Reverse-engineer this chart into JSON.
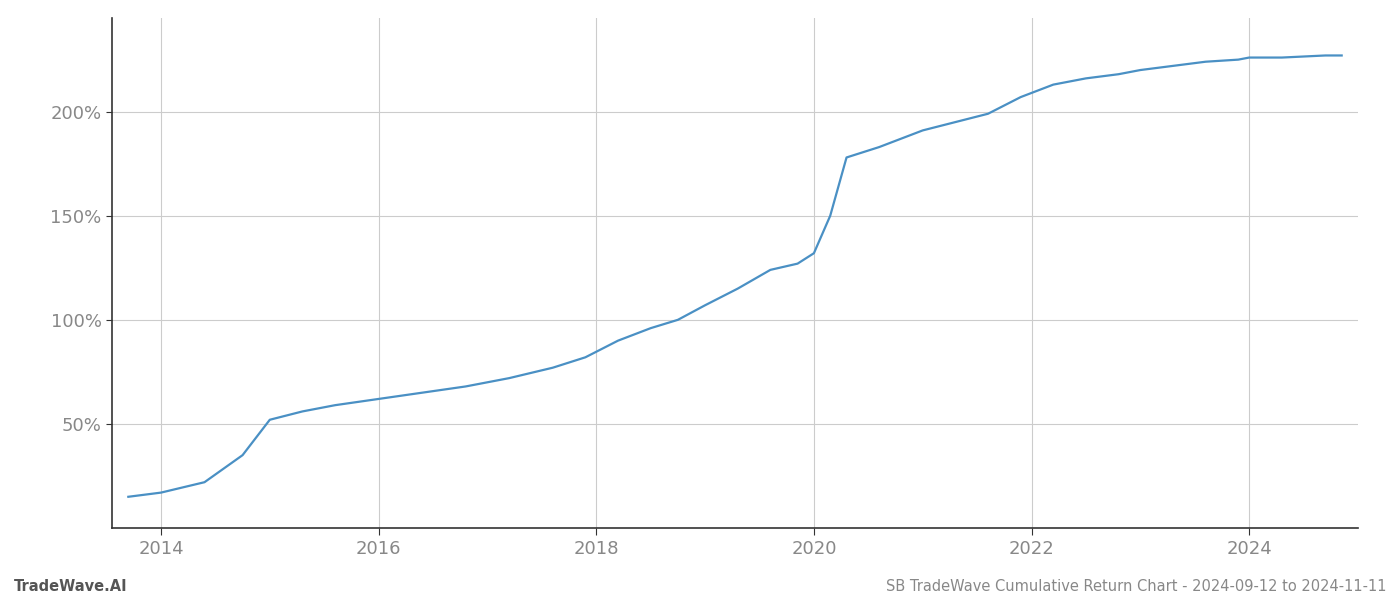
{
  "title": "SB TradeWave Cumulative Return Chart - 2024-09-12 to 2024-11-11",
  "watermark": "TradeWave.AI",
  "line_color": "#4a90c4",
  "background_color": "#ffffff",
  "grid_color": "#cccccc",
  "x_years": [
    2013.7,
    2014.0,
    2014.4,
    2014.75,
    2015.0,
    2015.3,
    2015.6,
    2016.0,
    2016.4,
    2016.8,
    2017.2,
    2017.6,
    2017.9,
    2018.2,
    2018.5,
    2018.75,
    2019.0,
    2019.3,
    2019.6,
    2019.85,
    2020.0,
    2020.15,
    2020.3,
    2020.6,
    2021.0,
    2021.3,
    2021.6,
    2021.9,
    2022.2,
    2022.5,
    2022.8,
    2023.0,
    2023.3,
    2023.6,
    2023.9,
    2024.0,
    2024.3,
    2024.7,
    2024.85
  ],
  "y_values": [
    15,
    17,
    22,
    35,
    52,
    56,
    59,
    62,
    65,
    68,
    72,
    77,
    82,
    90,
    96,
    100,
    107,
    115,
    124,
    127,
    132,
    150,
    178,
    183,
    191,
    195,
    199,
    207,
    213,
    216,
    218,
    220,
    222,
    224,
    225,
    226,
    226,
    227,
    227
  ],
  "yticks": [
    50,
    100,
    150,
    200
  ],
  "ytick_labels": [
    "50%",
    "100%",
    "150%",
    "200%"
  ],
  "xlim": [
    2013.55,
    2025.0
  ],
  "ylim": [
    0,
    245
  ],
  "xticks": [
    2014,
    2016,
    2018,
    2020,
    2022,
    2024
  ],
  "title_fontsize": 10.5,
  "watermark_fontsize": 10.5,
  "tick_fontsize": 13,
  "title_color": "#888888",
  "watermark_color": "#555555",
  "tick_color": "#888888",
  "spine_color": "#333333",
  "line_width": 1.6,
  "left_spine_color": "#333333"
}
